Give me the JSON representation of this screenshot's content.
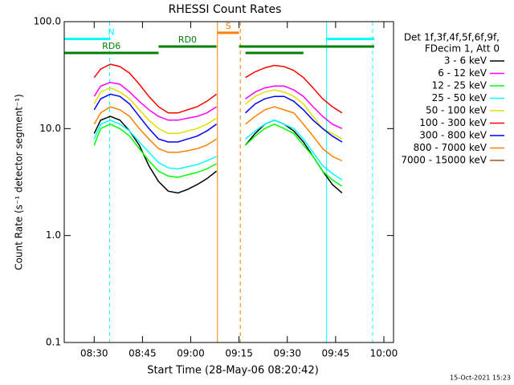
{
  "chart_data": {
    "type": "line",
    "title": "RHESSI Count Rates",
    "x_label": "Start Time (28-May-06 08:20:42)",
    "y_label": "Count Rate (s⁻¹ detector segment⁻¹)",
    "legend_header": [
      "Det 1f,3f,4f,5f,6f,9f,",
      "FDecim 1, Att 0"
    ],
    "footer": "15-Oct-2021 15:23",
    "log_y": true,
    "xlim": [
      500.7,
      603
    ],
    "ylim": [
      0.1,
      100
    ],
    "xticks": [
      {
        "value": 510,
        "label": "08:30"
      },
      {
        "value": 525,
        "label": "08:45"
      },
      {
        "value": 540,
        "label": "09:00"
      },
      {
        "value": 555,
        "label": "09:15"
      },
      {
        "value": 570,
        "label": "09:30"
      },
      {
        "value": 585,
        "label": "09:45"
      },
      {
        "value": 600,
        "label": "10:00"
      }
    ],
    "yticks": [
      {
        "value": 0.1,
        "label": "0.1"
      },
      {
        "value": 1,
        "label": "1.0"
      },
      {
        "value": 10,
        "label": "10.0"
      },
      {
        "value": 100,
        "label": "100.0"
      }
    ],
    "x": [
      510,
      512,
      515,
      518,
      521,
      524,
      527,
      530,
      533,
      536,
      539,
      542,
      545,
      548,
      null,
      557,
      560,
      563,
      566,
      569,
      572,
      575,
      578,
      581,
      584,
      587
    ],
    "series": [
      {
        "name": "3 - 6 keV",
        "color": "#000000",
        "values": [
          9,
          12,
          13,
          12,
          9.5,
          7,
          4.5,
          3.2,
          2.6,
          2.5,
          2.7,
          3,
          3.4,
          4,
          null,
          7,
          9,
          11,
          12,
          11,
          9.5,
          7.5,
          5.5,
          4,
          3,
          2.5
        ]
      },
      {
        "name": "6 - 12 keV",
        "color": "#ff00ff",
        "values": [
          20,
          25,
          27,
          26,
          22,
          18,
          15,
          13,
          12,
          12,
          12.5,
          13,
          14,
          16,
          null,
          19,
          22,
          24,
          25,
          25,
          23,
          20,
          16,
          13,
          11,
          10
        ]
      },
      {
        "name": "12 - 25 keV",
        "color": "#00ff00",
        "values": [
          7,
          10,
          11,
          10,
          8.5,
          6.5,
          5,
          4,
          3.6,
          3.5,
          3.7,
          3.9,
          4.2,
          4.7,
          null,
          7,
          8.5,
          10,
          11,
          10,
          9,
          7,
          5.5,
          4,
          3.3,
          2.9
        ]
      },
      {
        "name": "25 - 50 keV",
        "color": "#00ffff",
        "values": [
          8,
          11,
          12,
          11,
          9.5,
          7.5,
          6,
          4.8,
          4.3,
          4.2,
          4.4,
          4.6,
          5,
          5.5,
          null,
          8,
          9.5,
          11,
          12,
          11,
          10,
          8,
          6,
          4.5,
          3.8,
          3.3
        ]
      },
      {
        "name": "50 - 100 keV",
        "color": "#e0e000",
        "values": [
          17,
          22,
          24,
          22,
          19,
          15,
          12,
          10,
          9,
          9,
          9.5,
          10,
          11,
          12.5,
          null,
          17,
          20,
          22,
          23,
          22,
          20,
          17,
          13,
          10,
          9,
          8
        ]
      },
      {
        "name": "100 - 300 keV",
        "color": "#ff0000",
        "values": [
          30,
          36,
          40,
          38,
          33,
          26,
          20,
          16,
          14,
          14,
          15,
          16,
          18,
          21,
          null,
          30,
          34,
          37,
          39,
          38,
          35,
          30,
          24,
          19,
          16,
          14
        ]
      },
      {
        "name": "300 - 800 keV",
        "color": "#0000ff",
        "values": [
          15,
          19,
          21,
          20,
          17,
          13,
          10,
          8,
          7.5,
          7.5,
          8,
          8.5,
          9.5,
          11,
          null,
          14,
          17,
          19,
          20,
          20,
          18,
          15,
          12,
          10,
          8.5,
          7.5
        ]
      },
      {
        "name": "800 - 7000 keV",
        "color": "#ff8000",
        "values": [
          11,
          14,
          16,
          15,
          13,
          10,
          8,
          6.5,
          6,
          6,
          6.2,
          6.5,
          7,
          8,
          null,
          11,
          13,
          15,
          16,
          15,
          14,
          11,
          8.5,
          6.5,
          5.5,
          5
        ]
      },
      {
        "name": "7000 - 15000 keV",
        "color": "#a0522d",
        "values": [
          null,
          null,
          null,
          null,
          null,
          null,
          null,
          null,
          null,
          null,
          null,
          null,
          null,
          null,
          null,
          null,
          null,
          null,
          null,
          null,
          null,
          null,
          null,
          null,
          null,
          null
        ]
      }
    ],
    "vlines": [
      {
        "x": 500.7,
        "color": "#00ffff",
        "dashed": false
      },
      {
        "x": 514.8,
        "color": "#00ffff",
        "dashed": true
      },
      {
        "x": 548.3,
        "color": "#ff8000",
        "dashed": false
      },
      {
        "x": 555.4,
        "color": "#ff8000",
        "dashed": true
      },
      {
        "x": 582.2,
        "color": "#00ffff",
        "dashed": false
      },
      {
        "x": 596.5,
        "color": "#00ffff",
        "dashed": true
      }
    ],
    "flags": [
      {
        "label": "N",
        "color": "#00ffff",
        "level": 69,
        "segments": [
          [
            500.7,
            515
          ],
          [
            582.2,
            597
          ]
        ]
      },
      {
        "label": "RD0",
        "color": "#008000",
        "level": 58.6,
        "segments": [
          [
            530,
            548
          ],
          [
            555,
            597
          ]
        ]
      },
      {
        "label": "RD6",
        "color": "#008000",
        "level": 51,
        "segments": [
          [
            500.7,
            530
          ],
          [
            557,
            575
          ]
        ]
      },
      {
        "label": "S",
        "color": "#ff8000",
        "level": 78.7,
        "segments": [
          [
            548.3,
            555
          ]
        ]
      }
    ]
  }
}
